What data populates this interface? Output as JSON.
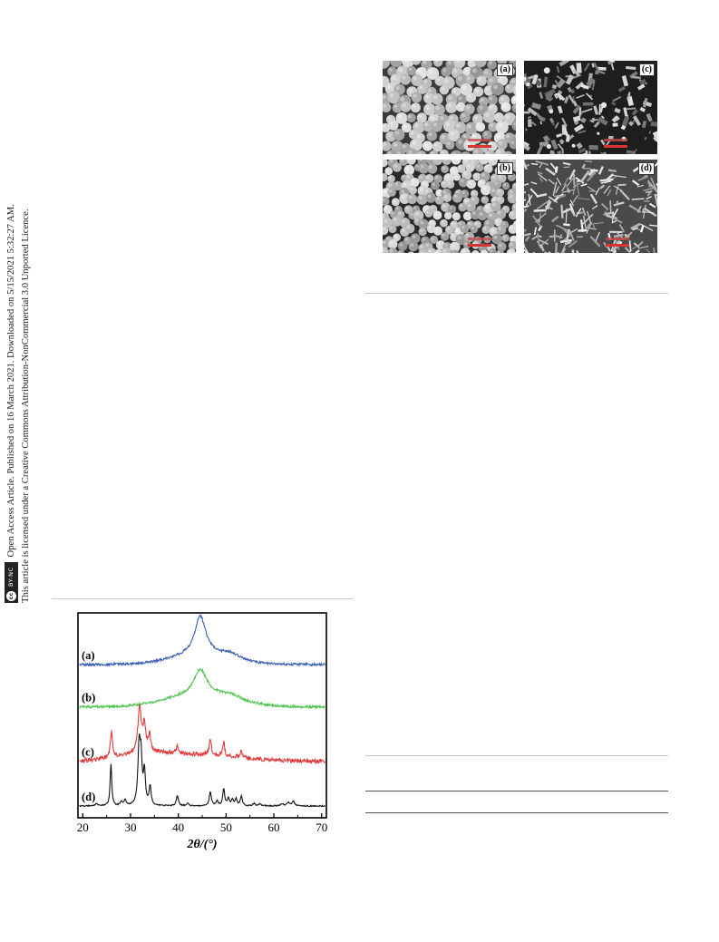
{
  "side_notice": {
    "line1": "Open Access Article. Published on 16 March 2021. Downloaded on 5/15/2021 5:32:27 AM.",
    "line2": "This article is licensed under a Creative Commons Attribution-NonCommercial 3.0 Unported Licence.",
    "badge_cc": "cc",
    "badge_text": "BY-NC"
  },
  "sem_figure": {
    "panels": [
      {
        "label": "(a)",
        "texture": "spheres-large",
        "bg": "#3a3a3a",
        "fg": "#bdbdbd"
      },
      {
        "label": "(b)",
        "texture": "spheres-packed",
        "bg": "#2a2a2a",
        "fg": "#c8c8c8"
      },
      {
        "label": "(c)",
        "texture": "flakes-dark",
        "bg": "#1e1e1e",
        "fg": "#8f8f8f"
      },
      {
        "label": "(d)",
        "texture": "needles",
        "bg": "#4a4a4a",
        "fg": "#cfcfcf"
      }
    ]
  },
  "chart_data": {
    "type": "line",
    "xlabel": "2θ/(°)",
    "ylabel": "",
    "xlim": [
      19,
      71
    ],
    "xticks": [
      20,
      30,
      40,
      50,
      60,
      70
    ],
    "grid": false,
    "series": [
      {
        "name": "(a)",
        "color": "#3a5fb5",
        "offset": 3.0,
        "peaks": [
          [
            44.6,
            0.82,
            1.4
          ],
          [
            51.0,
            0.12,
            2.5
          ]
        ],
        "broad": [
          [
            44.6,
            0.2,
            6
          ]
        ],
        "noise": 0.025
      },
      {
        "name": "(b)",
        "color": "#4fc44f",
        "offset": 2.1,
        "peaks": [
          [
            44.6,
            0.55,
            1.6
          ],
          [
            51.0,
            0.1,
            2.5
          ]
        ],
        "broad": [
          [
            44.6,
            0.25,
            7
          ]
        ],
        "noise": 0.025
      },
      {
        "name": "(c)",
        "color": "#e03a3a",
        "offset": 0.95,
        "peaks": [
          [
            26.0,
            0.55,
            0.25
          ],
          [
            31.9,
            1.0,
            0.4
          ],
          [
            32.9,
            0.55,
            0.35
          ],
          [
            34.0,
            0.35,
            0.3
          ],
          [
            39.8,
            0.15,
            0.3
          ],
          [
            46.7,
            0.3,
            0.3
          ],
          [
            49.5,
            0.3,
            0.25
          ],
          [
            53.2,
            0.12,
            0.3
          ]
        ],
        "broad": [
          [
            33,
            0.15,
            6
          ],
          [
            46,
            0.12,
            8
          ]
        ],
        "noise": 0.045
      },
      {
        "name": "(d)",
        "color": "#111111",
        "offset": 0.0,
        "peaks": [
          [
            22.9,
            0.05,
            0.3
          ],
          [
            25.9,
            0.9,
            0.2
          ],
          [
            28.1,
            0.08,
            0.25
          ],
          [
            28.9,
            0.12,
            0.25
          ],
          [
            31.8,
            1.25,
            0.3
          ],
          [
            32.2,
            0.85,
            0.25
          ],
          [
            32.9,
            0.7,
            0.25
          ],
          [
            34.1,
            0.4,
            0.25
          ],
          [
            39.8,
            0.22,
            0.25
          ],
          [
            42.0,
            0.05,
            0.3
          ],
          [
            46.7,
            0.3,
            0.25
          ],
          [
            48.1,
            0.1,
            0.25
          ],
          [
            49.5,
            0.35,
            0.25
          ],
          [
            50.5,
            0.15,
            0.25
          ],
          [
            51.3,
            0.12,
            0.25
          ],
          [
            52.1,
            0.15,
            0.25
          ],
          [
            53.2,
            0.2,
            0.25
          ],
          [
            55.9,
            0.05,
            0.3
          ],
          [
            57.1,
            0.04,
            0.3
          ],
          [
            61.7,
            0.05,
            0.3
          ],
          [
            63.0,
            0.08,
            0.3
          ],
          [
            64.1,
            0.1,
            0.3
          ]
        ],
        "broad": [],
        "noise": 0.012
      }
    ]
  }
}
